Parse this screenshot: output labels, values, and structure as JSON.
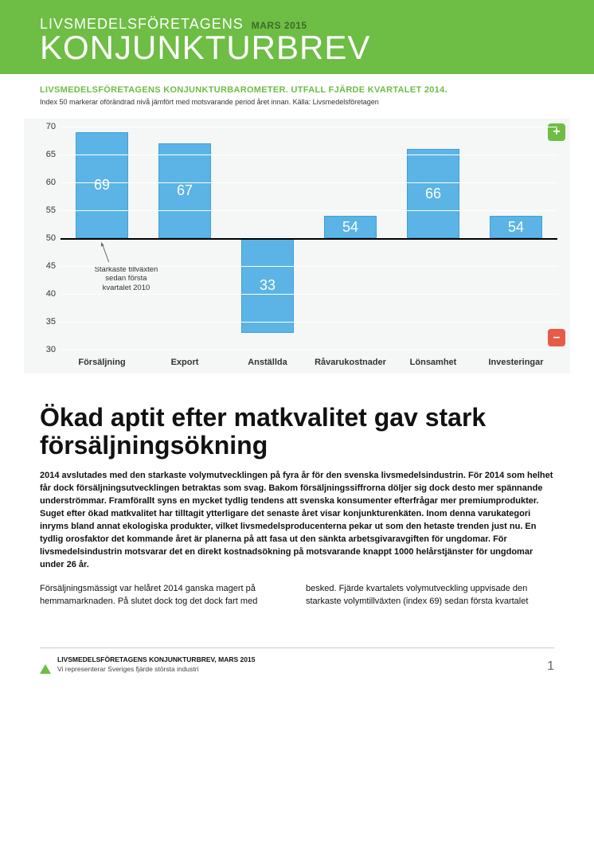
{
  "hdr": {
    "brand": "LIVSMEDELSFÖRETAGENS",
    "date": "MARS 2015",
    "title": "KONJUNKTURBREV"
  },
  "sub": {
    "title": "LIVSMEDELSFÖRETAGENS KONJUNKTURBAROMETER. UTFALL FJÄRDE KVARTALET 2014.",
    "note": "Index 50 markerar oförändrad nivå jämfört med motsvarande period året innan. Källa: Livsmedelsföretagen"
  },
  "chart": {
    "type": "bar",
    "categories": [
      "Försäljning",
      "Export",
      "Anställda",
      "Råvarukostnader",
      "Lönsamhet",
      "Investeringar"
    ],
    "values": [
      69,
      67,
      33,
      54,
      66,
      54
    ],
    "bar_color": "#5bb4e5",
    "bar_border": "#3fa0d8",
    "value_color": "#ffffff",
    "value_fontsize": 18,
    "background_color": "#f5f6f6",
    "grid_color": "#ffffff",
    "axis_color": "#333333",
    "ymin": 30,
    "ymax": 70,
    "ytick_step": 5,
    "baseline": 50,
    "label_fontsize": 11,
    "bar_width": 0.64,
    "note": {
      "line1": "Starkaste tillväxten",
      "line2": "sedan första",
      "line3": "kvartalet 2010"
    },
    "badges": {
      "plus_color": "#6ebd44",
      "minus_color": "#e75a4a",
      "plus": "+",
      "minus": "–"
    }
  },
  "article": {
    "headline": "Ökad aptit efter matkvalitet gav stark försäljningsökning",
    "lead": "2014 avslutades med den starkaste volymutvecklingen på fyra år för den svenska livsmedelsindustrin. För 2014 som helhet får dock försäljningsutvecklingen betraktas som svag. Bakom försäljningssiffrorna döljer sig dock desto mer spännande underströmmar. Framförallt syns en mycket tydlig tendens att svenska konsumenter efterfrågar mer premiumprodukter. Suget efter ökad matkvalitet har tilltagit ytterligare det senaste året visar konjunkturenkäten. Inom denna varukategori inryms bland annat ekologiska produkter, vilket livsmedelsproducenterna pekar ut som den hetaste trenden just nu. En tydlig orosfaktor det kommande året är planerna på att fasa ut den sänkta arbetsgivaravgiften för ungdomar. För livsmedelsindustrin motsvarar det en direkt kostnadsökning på motsvarande knappt 1000 helårstjänster för ungdomar under 26 år.",
    "body": "Försäljningsmässigt var helåret 2014 ganska magert på hemmamarknaden. På slutet dock tog det dock fart med besked. Fjärde kvartalets volymutveckling uppvisade den starkaste volymtillväxten (index 69) sedan första kvartalet"
  },
  "ftr": {
    "t1": "LIVSMEDELSFÖRETAGENS KONJUNKTURBREV, MARS 2015",
    "t2": "Vi representerar Sveriges fjärde största industri",
    "page": "1"
  }
}
